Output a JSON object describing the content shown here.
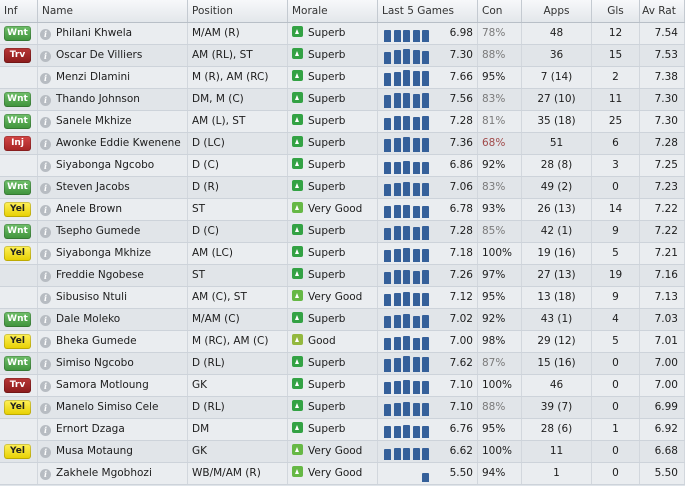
{
  "columns": {
    "inf": "Inf",
    "name": "Name",
    "position": "Position",
    "morale": "Morale",
    "last5": "Last 5 Games",
    "con": "Con",
    "apps": "Apps",
    "gls": "Gls",
    "avrat": "Av Rat"
  },
  "colors": {
    "bar": "#35609a",
    "wnt": "#4ea84a",
    "trv": "#a52a2a",
    "inj": "#c23838",
    "yel": "#f5e02a"
  },
  "players": [
    {
      "inf": "Wnt",
      "name": "Philani Khwela",
      "position": "M/AM (R)",
      "morale": "Superb",
      "rating": "6.98",
      "con": "78%",
      "apps": "48",
      "gls": "12",
      "avrat": "7.54",
      "last5": [
        0.72,
        0.78,
        0.78,
        0.74,
        0.78
      ]
    },
    {
      "inf": "Trv",
      "name": "Oscar De Villiers",
      "position": "AM (RL), ST",
      "morale": "Superb",
      "rating": "7.30",
      "con": "88%",
      "apps": "36",
      "gls": "15",
      "avrat": "7.53",
      "last5": [
        0.76,
        0.86,
        0.94,
        0.86,
        0.82
      ]
    },
    {
      "inf": "",
      "name": "Menzi Dlamini",
      "position": "M (R), AM (RC)",
      "morale": "Superb",
      "rating": "7.66",
      "con": "95%",
      "apps": "7 (14)",
      "gls": "2",
      "avrat": "7.38",
      "last5": [
        0.82,
        0.9,
        1.0,
        0.94,
        0.94
      ]
    },
    {
      "inf": "Wnt",
      "name": "Thando Johnson",
      "position": "DM, M (C)",
      "morale": "Superb",
      "rating": "7.56",
      "con": "83%",
      "apps": "27 (10)",
      "gls": "11",
      "avrat": "7.30",
      "last5": [
        0.8,
        0.94,
        0.96,
        0.88,
        0.96
      ]
    },
    {
      "inf": "Wnt",
      "name": "Sanele Mkhize",
      "position": "AM (L), ST",
      "morale": "Superb",
      "rating": "7.28",
      "con": "81%",
      "apps": "35 (18)",
      "gls": "25",
      "avrat": "7.30",
      "last5": [
        0.78,
        0.86,
        0.88,
        0.84,
        0.88
      ]
    },
    {
      "inf": "Inj",
      "name": "Awonke Eddie Kwenene",
      "position": "D (LC)",
      "morale": "Superb",
      "rating": "7.36",
      "con": "68%",
      "apps": "51",
      "gls": "6",
      "avrat": "7.28",
      "last5": [
        0.8,
        0.88,
        0.94,
        0.86,
        0.88
      ]
    },
    {
      "inf": "",
      "name": "Siyabonga Ngcobo",
      "position": "D (C)",
      "morale": "Superb",
      "rating": "6.86",
      "con": "92%",
      "apps": "28 (8)",
      "gls": "3",
      "avrat": "7.25",
      "last5": [
        0.72,
        0.78,
        0.84,
        0.76,
        0.76
      ]
    },
    {
      "inf": "Wnt",
      "name": "Steven Jacobs",
      "position": "D (R)",
      "morale": "Superb",
      "rating": "7.06",
      "con": "83%",
      "apps": "49 (2)",
      "gls": "0",
      "avrat": "7.23",
      "last5": [
        0.76,
        0.8,
        0.86,
        0.8,
        0.8
      ]
    },
    {
      "inf": "Yel",
      "name": "Anele Brown",
      "position": "ST",
      "morale": "Very Good",
      "rating": "6.78",
      "con": "93%",
      "apps": "26 (13)",
      "gls": "14",
      "avrat": "7.22",
      "last5": [
        0.72,
        0.8,
        0.8,
        0.76,
        0.76
      ]
    },
    {
      "inf": "Wnt",
      "name": "Tsepho Gumede",
      "position": "D (C)",
      "morale": "Superb",
      "rating": "7.28",
      "con": "85%",
      "apps": "42 (1)",
      "gls": "9",
      "avrat": "7.22",
      "last5": [
        0.78,
        0.86,
        0.88,
        0.84,
        0.86
      ]
    },
    {
      "inf": "Yel",
      "name": "Siyabonga Mkhize",
      "position": "AM (LC)",
      "morale": "Superb",
      "rating": "7.18",
      "con": "100%",
      "apps": "19 (16)",
      "gls": "5",
      "avrat": "7.21",
      "last5": [
        0.76,
        0.84,
        0.86,
        0.82,
        0.84
      ]
    },
    {
      "inf": "",
      "name": "Freddie Ngobese",
      "position": "ST",
      "morale": "Superb",
      "rating": "7.26",
      "con": "97%",
      "apps": "27 (13)",
      "gls": "19",
      "avrat": "7.16",
      "last5": [
        0.78,
        0.86,
        0.9,
        0.84,
        0.86
      ]
    },
    {
      "inf": "",
      "name": "Sibusiso Ntuli",
      "position": "AM (C), ST",
      "morale": "Very Good",
      "rating": "7.12",
      "con": "95%",
      "apps": "13 (18)",
      "gls": "9",
      "avrat": "7.13",
      "last5": [
        0.76,
        0.82,
        0.86,
        0.82,
        0.82
      ]
    },
    {
      "inf": "Wnt",
      "name": "Dale Moleko",
      "position": "M/AM (C)",
      "morale": "Superb",
      "rating": "7.02",
      "con": "92%",
      "apps": "43 (1)",
      "gls": "4",
      "avrat": "7.03",
      "last5": [
        0.74,
        0.8,
        0.86,
        0.78,
        0.8
      ]
    },
    {
      "inf": "Yel",
      "name": "Bheka Gumede",
      "position": "M (RC), AM (C)",
      "morale": "Good",
      "rating": "7.00",
      "con": "98%",
      "apps": "29 (12)",
      "gls": "5",
      "avrat": "7.01",
      "last5": [
        0.74,
        0.8,
        0.86,
        0.78,
        0.8
      ]
    },
    {
      "inf": "Wnt",
      "name": "Simiso Ngcobo",
      "position": "D (RL)",
      "morale": "Superb",
      "rating": "7.62",
      "con": "87%",
      "apps": "15 (16)",
      "gls": "0",
      "avrat": "7.00",
      "last5": [
        0.82,
        0.9,
        1.0,
        0.92,
        0.94
      ]
    },
    {
      "inf": "Trv",
      "name": "Samora Motloung",
      "position": "GK",
      "morale": "Superb",
      "rating": "7.10",
      "con": "100%",
      "apps": "46",
      "gls": "0",
      "avrat": "7.00",
      "last5": [
        0.76,
        0.82,
        0.86,
        0.8,
        0.82
      ]
    },
    {
      "inf": "Yel",
      "name": "Manelo Simiso Cele",
      "position": "D (RL)",
      "morale": "Superb",
      "rating": "7.10",
      "con": "88%",
      "apps": "39 (7)",
      "gls": "0",
      "avrat": "6.99",
      "last5": [
        0.76,
        0.82,
        0.86,
        0.8,
        0.82
      ]
    },
    {
      "inf": "",
      "name": "Ernort Dzaga",
      "position": "DM",
      "morale": "Superb",
      "rating": "6.76",
      "con": "95%",
      "apps": "28 (6)",
      "gls": "1",
      "avrat": "6.92",
      "last5": [
        0.72,
        0.78,
        0.82,
        0.74,
        0.76
      ]
    },
    {
      "inf": "Yel",
      "name": "Musa Motaung",
      "position": "GK",
      "morale": "Very Good",
      "rating": "6.62",
      "con": "100%",
      "apps": "11",
      "gls": "0",
      "avrat": "6.68",
      "last5": [
        0.7,
        0.76,
        0.78,
        0.72,
        0.74
      ]
    },
    {
      "inf": "",
      "name": "Zakhele Mgobhozi",
      "position": "WB/M/AM (R)",
      "morale": "Very Good",
      "rating": "5.50",
      "con": "94%",
      "apps": "1",
      "gls": "0",
      "avrat": "5.50",
      "last5": [
        0,
        0,
        0,
        0,
        0.55
      ]
    }
  ]
}
